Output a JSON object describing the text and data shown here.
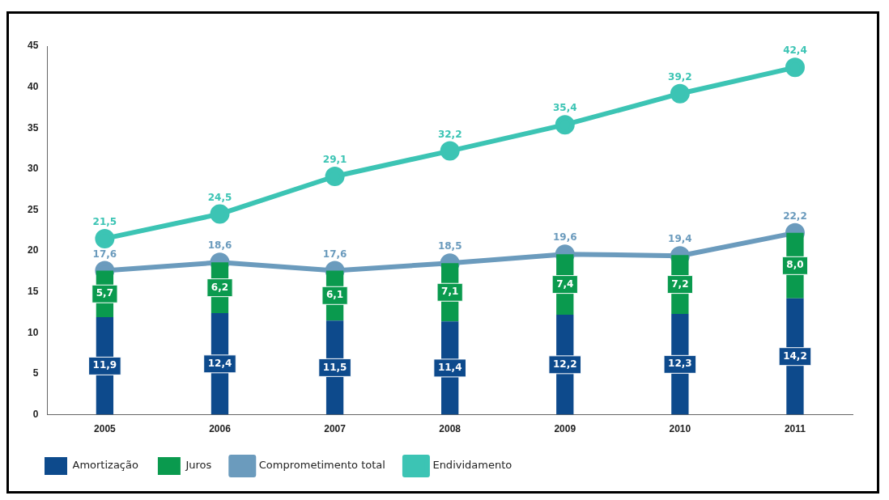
{
  "chart_data": {
    "type": "bar",
    "stacked": true,
    "categories": [
      "2005",
      "2006",
      "2007",
      "2008",
      "2009",
      "2010",
      "2011"
    ],
    "series": [
      {
        "name": "Amortização",
        "color": "#0d4a8c",
        "values": [
          11.9,
          12.4,
          11.5,
          11.4,
          12.2,
          12.3,
          14.2
        ],
        "value_labels": [
          "11,9",
          "12,4",
          "11,5",
          "11,4",
          "12,2",
          "12,3",
          "14,2"
        ]
      },
      {
        "name": "Juros",
        "color": "#0a9a4e",
        "values": [
          5.7,
          6.2,
          6.1,
          7.1,
          7.4,
          7.2,
          8.0
        ],
        "value_labels": [
          "5,7",
          "6,2",
          "6,1",
          "7,1",
          "7,4",
          "7,2",
          "8,0"
        ]
      },
      {
        "name": "Comprometimento total",
        "type": "line",
        "color": "#6b9bbd",
        "values": [
          17.6,
          18.6,
          17.6,
          18.5,
          19.6,
          19.4,
          22.2
        ],
        "value_labels": [
          "17,6",
          "18,6",
          "17,6",
          "18,5",
          "19,6",
          "19,4",
          "22,2"
        ]
      },
      {
        "name": "Endividamento",
        "type": "line",
        "color": "#3cc4b4",
        "values": [
          21.5,
          24.5,
          29.1,
          32.2,
          35.4,
          39.2,
          42.4
        ],
        "value_labels": [
          "21,5",
          "24,5",
          "29,1",
          "32,2",
          "35,4",
          "39,2",
          "42,4"
        ]
      }
    ],
    "ylim": [
      0,
      45
    ],
    "yticks": [
      0,
      5,
      10,
      15,
      20,
      25,
      30,
      35,
      40,
      45
    ],
    "grid": false,
    "legend": "bottom",
    "marker": "circle",
    "line_style": "solid"
  }
}
